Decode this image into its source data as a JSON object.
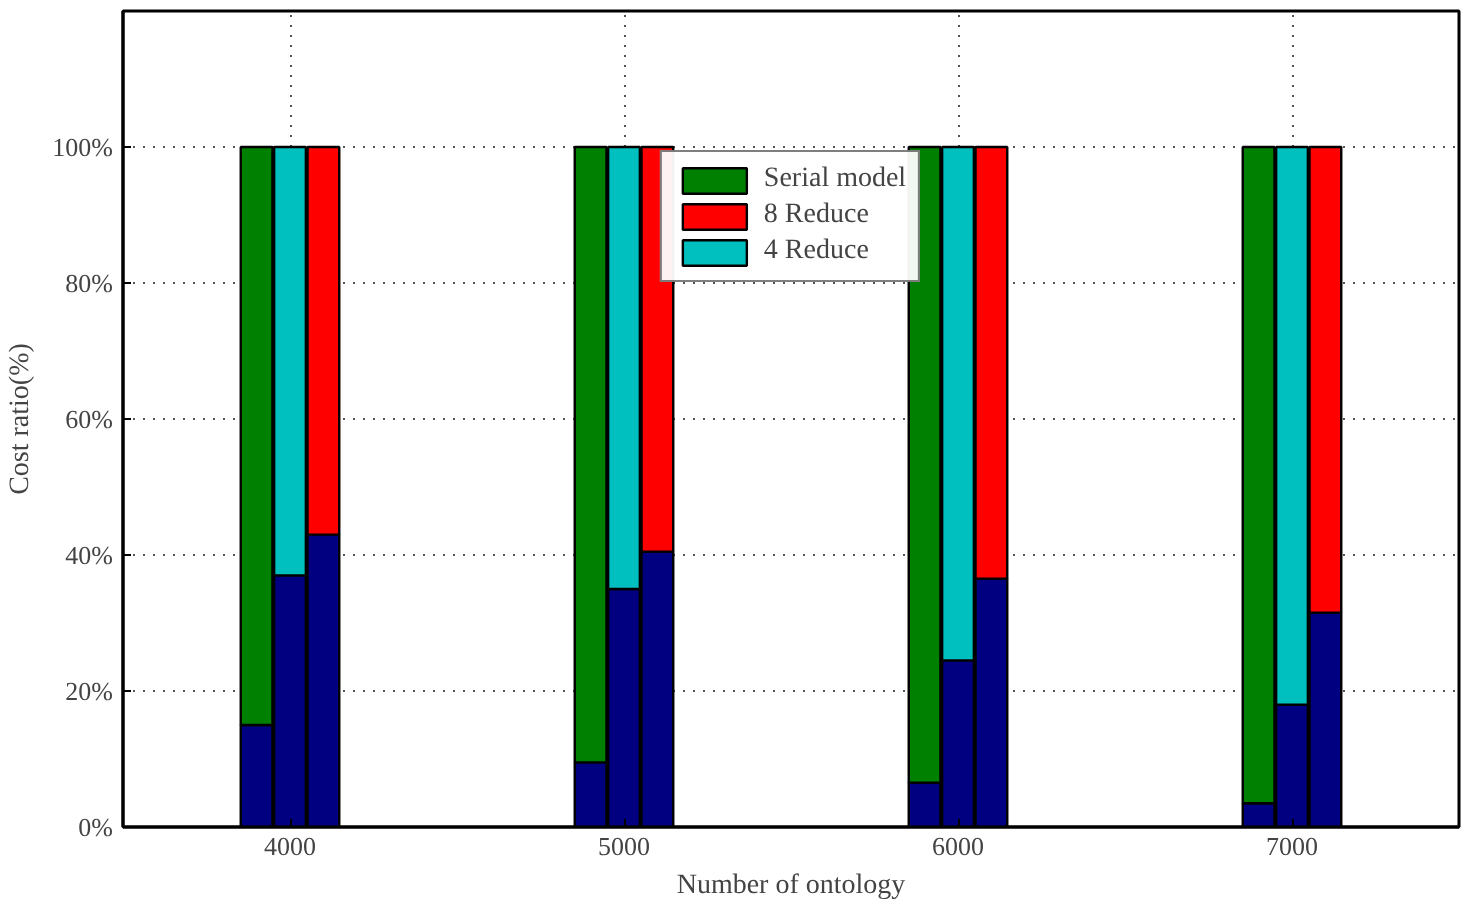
{
  "chart_data": {
    "type": "bar",
    "xlabel": "Number of ontology",
    "ylabel": "Cost ratio(%)",
    "xlim": [
      3500,
      7500
    ],
    "xticks": [
      4000,
      5000,
      6000,
      7000
    ],
    "ylim": [
      0,
      120
    ],
    "yticks": [
      {
        "value": 0,
        "label": "0%"
      },
      {
        "value": 20,
        "label": "20%"
      },
      {
        "value": 40,
        "label": "40%"
      },
      {
        "value": 60,
        "label": "60%"
      },
      {
        "value": 80,
        "label": "80%"
      },
      {
        "value": 100,
        "label": "100%"
      }
    ],
    "grid": true,
    "legend": "top",
    "series": [
      {
        "color": "#000080",
        "x": [
          3900,
          4000,
          4100,
          4900,
          5000,
          5100,
          5900,
          6000,
          6100,
          6900,
          7000,
          7100
        ],
        "values": [
          15,
          37,
          43,
          9.5,
          35,
          40.5,
          6.5,
          24.5,
          36.5,
          3.5,
          18,
          31.5
        ]
      },
      {
        "name": "Serial model",
        "color": "#008000",
        "x": [
          3900,
          4900,
          5900,
          6900
        ],
        "base": [
          15,
          9.5,
          6.5,
          3.5
        ],
        "values": [
          85,
          90.5,
          93.5,
          96.5
        ]
      },
      {
        "name": "8 Reduce",
        "color": "#ff0000",
        "x": [
          4100,
          5100,
          6100,
          7100
        ],
        "base": [
          43,
          40.5,
          36.5,
          31.5
        ],
        "values": [
          57,
          59.5,
          63.5,
          68.5
        ]
      },
      {
        "name": "4 Reduce",
        "color": "#00bfbf",
        "x": [
          4000,
          5000,
          6000,
          7000
        ],
        "base": [
          37,
          35,
          24.5,
          18
        ],
        "values": [
          63,
          65,
          75.5,
          82
        ]
      }
    ]
  }
}
